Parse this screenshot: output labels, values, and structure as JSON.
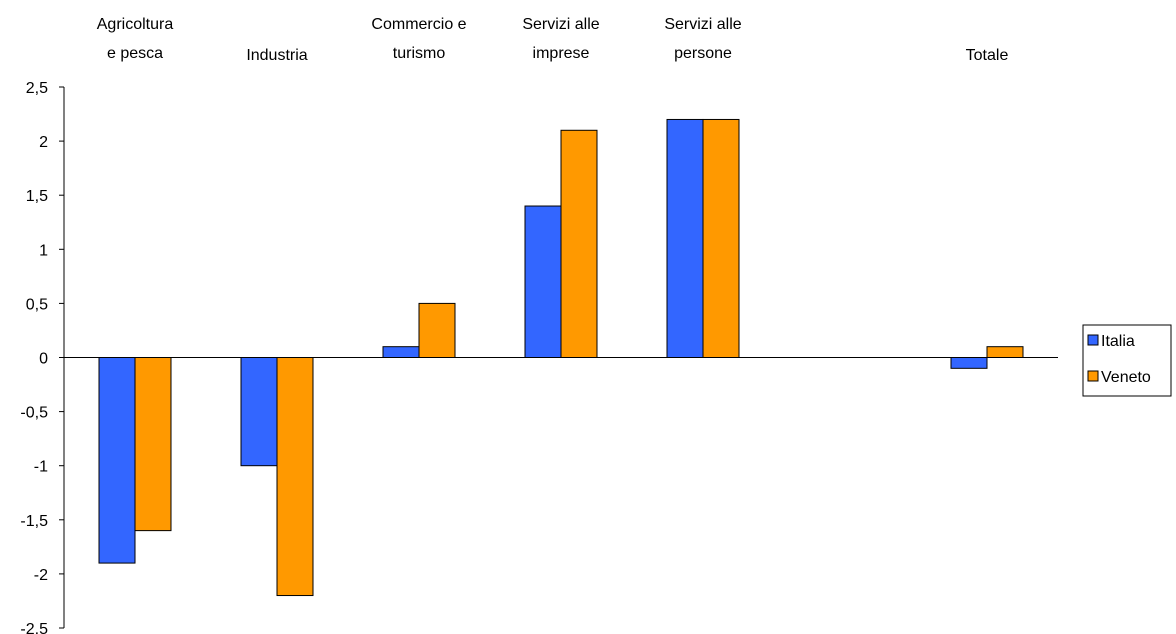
{
  "chart_data": {
    "type": "bar",
    "categories": [
      [
        "Agricoltura",
        "e pesca"
      ],
      [
        "Industria"
      ],
      [
        "Commercio e",
        "turismo"
      ],
      [
        "Servizi alle",
        "imprese"
      ],
      [
        "Servizi  alle",
        "persone"
      ],
      [
        ""
      ],
      [
        "Totale"
      ]
    ],
    "series": [
      {
        "name": "Italia",
        "values": [
          -1.9,
          -1.0,
          0.1,
          1.4,
          2.2,
          null,
          -0.1
        ],
        "color": "#3366ff"
      },
      {
        "name": "Veneto",
        "values": [
          -1.6,
          -2.2,
          0.5,
          2.1,
          2.2,
          null,
          0.1
        ],
        "color": "#ff9900"
      }
    ],
    "ylim": [
      -2.5,
      2.5
    ],
    "yticks": [
      "2,5",
      "2",
      "1,5",
      "1",
      "0,5",
      "0",
      "-0,5",
      "-1",
      "-1,5",
      "-2",
      "-2,5"
    ],
    "grid": false,
    "legend": "right"
  }
}
